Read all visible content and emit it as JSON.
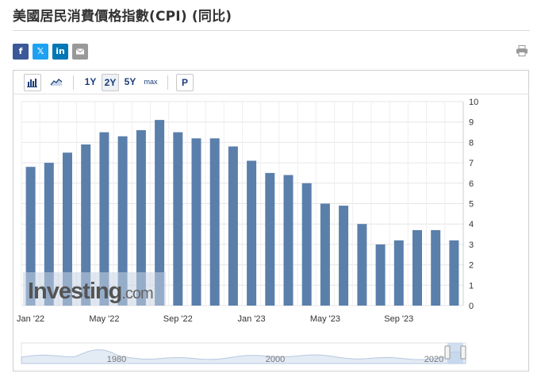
{
  "page": {
    "title": "美國居民消費價格指數(CPI) (同比)"
  },
  "share": {
    "facebook": "f",
    "twitter": "𝕏",
    "linkedin": "in",
    "email_icon": "mail-icon",
    "print_icon": "printer-icon"
  },
  "toolbar": {
    "bar_chart_icon": "bar-chart-icon",
    "area_chart_icon": "area-chart-icon",
    "range_1y": "1Y",
    "range_2y": "2Y",
    "range_5y": "5Y",
    "range_max": "max",
    "active_range": "2Y",
    "p_button": "P"
  },
  "watermark": {
    "brand": "Investing",
    "suffix": ".com"
  },
  "chart_data": {
    "type": "bar",
    "categories": [
      "Jan '22",
      "Feb '22",
      "Mar '22",
      "Apr '22",
      "May '22",
      "Jun '22",
      "Jul '22",
      "Aug '22",
      "Sep '22",
      "Oct '22",
      "Nov '22",
      "Dec '22",
      "Jan '23",
      "Feb '23",
      "Mar '23",
      "Apr '23",
      "May '23",
      "Jun '23",
      "Jul '23",
      "Aug '23",
      "Sep '23",
      "Oct '23",
      "Nov '23",
      "Dec '23"
    ],
    "values": [
      6.8,
      7.0,
      7.5,
      7.9,
      8.5,
      8.3,
      8.6,
      9.1,
      8.5,
      8.2,
      8.2,
      7.8,
      7.1,
      6.5,
      6.4,
      6.0,
      5.0,
      4.9,
      4.0,
      3.0,
      3.2,
      3.7,
      3.7,
      3.2
    ],
    "x_tick_labels": [
      "Jan '22",
      "May '22",
      "Sep '22",
      "Jan '23",
      "May '23",
      "Sep '23"
    ],
    "x_tick_indices": [
      0,
      4,
      8,
      12,
      16,
      20
    ],
    "y_ticks": [
      0,
      1,
      2,
      3,
      4,
      5,
      6,
      7,
      8,
      9,
      10
    ],
    "ylim": [
      0,
      10
    ],
    "y_axis_side": "right",
    "grid": true,
    "bar_color": "#5b7fab",
    "title": "",
    "xlabel": "",
    "ylabel": ""
  },
  "navigator": {
    "labels": [
      "1980",
      "2000",
      "2020"
    ],
    "label_years": [
      1980,
      2000,
      2020
    ],
    "year_range": [
      1968,
      2024
    ],
    "line_color": "#c3d3e6"
  }
}
